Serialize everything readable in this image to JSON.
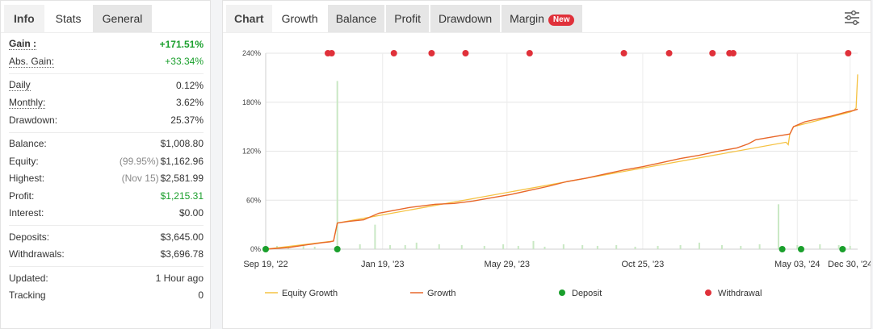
{
  "left_tabs": [
    {
      "label": "Info"
    },
    {
      "label": "Stats"
    },
    {
      "label": "General"
    }
  ],
  "stats": {
    "gain": {
      "label": "Gain :",
      "value": "+171.51%"
    },
    "abs_gain": {
      "label": "Abs. Gain:",
      "value": "+33.34%"
    },
    "daily": {
      "label": "Daily",
      "value": "0.12%"
    },
    "monthly": {
      "label": "Monthly:",
      "value": "3.62%"
    },
    "drawdown": {
      "label": "Drawdown:",
      "value": "25.37%"
    },
    "balance": {
      "label": "Balance:",
      "value": "$1,008.80"
    },
    "equity": {
      "label": "Equity:",
      "note": "(99.95%)",
      "value": "$1,162.96"
    },
    "highest": {
      "label": "Highest:",
      "note": "(Nov 15)",
      "value": "$2,581.99"
    },
    "profit": {
      "label": "Profit:",
      "value": "$1,215.31"
    },
    "interest": {
      "label": "Interest:",
      "value": "$0.00"
    },
    "deposits": {
      "label": "Deposits:",
      "value": "$3,645.00"
    },
    "withdrawals": {
      "label": "Withdrawals:",
      "value": "$3,696.78"
    },
    "updated": {
      "label": "Updated:",
      "value": "1 Hour ago"
    },
    "tracking": {
      "label": "Tracking",
      "value": "0"
    }
  },
  "right_tabs": [
    {
      "label": "Chart"
    },
    {
      "label": "Growth"
    },
    {
      "label": "Balance"
    },
    {
      "label": "Profit"
    },
    {
      "label": "Drawdown"
    },
    {
      "label": "Margin",
      "badge": "New"
    }
  ],
  "colors": {
    "growth": "#e8672a",
    "equity": "#f5c242",
    "deposit": "#1a9f2c",
    "withdrawal": "#e0313a",
    "volume": "#c9e8c4",
    "positive": "#1a9f2c"
  },
  "icons": {
    "settings": "sliders-icon"
  },
  "chart_data": {
    "type": "line",
    "title": "",
    "ylim": [
      0,
      240
    ],
    "yticks": [
      0,
      60,
      120,
      180,
      240
    ],
    "ytick_labels": [
      "0%",
      "60%",
      "120%",
      "180%",
      "240%"
    ],
    "x_range": [
      "2022-09-19",
      "2025-01-01"
    ],
    "xtick_labels": [
      "Sep 19, '22",
      "Jan 19, '23",
      "May 29, '23",
      "Oct 25, '23",
      "May 03, '24",
      "Dec 30, '24"
    ],
    "grid": true,
    "legend": [
      "Equity Growth",
      "Growth",
      "Deposit",
      "Withdrawal"
    ],
    "legend_position": "bottom",
    "growth": {
      "name": "Growth",
      "points": [
        [
          0,
          0
        ],
        [
          3,
          1
        ],
        [
          6,
          2
        ],
        [
          9,
          4
        ],
        [
          12,
          6
        ],
        [
          15,
          8
        ],
        [
          17,
          9
        ],
        [
          18,
          10
        ],
        [
          19,
          32
        ],
        [
          22,
          34
        ],
        [
          26,
          36
        ],
        [
          27,
          38
        ],
        [
          30,
          44
        ],
        [
          38,
          51
        ],
        [
          45,
          55
        ],
        [
          50,
          56
        ],
        [
          55,
          59
        ],
        [
          60,
          63
        ],
        [
          65,
          67
        ],
        [
          70,
          72
        ],
        [
          75,
          77
        ],
        [
          80,
          83
        ],
        [
          85,
          87
        ],
        [
          90,
          92
        ],
        [
          95,
          97
        ],
        [
          100,
          101
        ],
        [
          105,
          106
        ],
        [
          110,
          111
        ],
        [
          115,
          115
        ],
        [
          120,
          120
        ],
        [
          125,
          124
        ],
        [
          128,
          129
        ],
        [
          130,
          134
        ],
        [
          135,
          138
        ],
        [
          139,
          141
        ],
        [
          140,
          150
        ],
        [
          143,
          156
        ],
        [
          146,
          159
        ],
        [
          150,
          163
        ],
        [
          154,
          168
        ],
        [
          156,
          170
        ],
        [
          157,
          171.5
        ]
      ]
    },
    "equity": {
      "name": "Equity Growth",
      "points": [
        [
          0,
          0
        ],
        [
          18,
          10
        ],
        [
          19,
          32
        ],
        [
          138,
          131
        ],
        [
          138.6,
          128
        ],
        [
          139,
          141
        ],
        [
          140,
          150
        ],
        [
          155,
          168
        ],
        [
          156,
          170
        ],
        [
          156.6,
          173
        ],
        [
          157,
          214
        ]
      ]
    },
    "volume": [
      [
        3,
        4
      ],
      [
        6,
        3
      ],
      [
        10,
        5
      ],
      [
        13,
        3
      ],
      [
        19,
        206
      ],
      [
        25,
        6
      ],
      [
        29,
        30
      ],
      [
        33,
        5
      ],
      [
        37,
        5
      ],
      [
        40,
        8
      ],
      [
        46,
        6
      ],
      [
        52,
        5
      ],
      [
        58,
        4
      ],
      [
        63,
        6
      ],
      [
        67,
        4
      ],
      [
        71,
        10
      ],
      [
        74,
        3
      ],
      [
        79,
        6
      ],
      [
        84,
        5
      ],
      [
        88,
        4
      ],
      [
        93,
        5
      ],
      [
        98,
        3
      ],
      [
        104,
        4
      ],
      [
        110,
        5
      ],
      [
        115,
        8
      ],
      [
        121,
        5
      ],
      [
        126,
        4
      ],
      [
        131,
        6
      ],
      [
        136,
        55
      ],
      [
        141,
        5
      ],
      [
        147,
        6
      ],
      [
        152,
        5
      ],
      [
        155,
        4
      ]
    ],
    "deposits": [
      0,
      19,
      137,
      142,
      153
    ],
    "withdrawals": [
      16.5,
      17.5,
      34,
      44,
      53,
      70,
      95,
      107,
      118.5,
      123,
      124,
      154.5
    ]
  }
}
